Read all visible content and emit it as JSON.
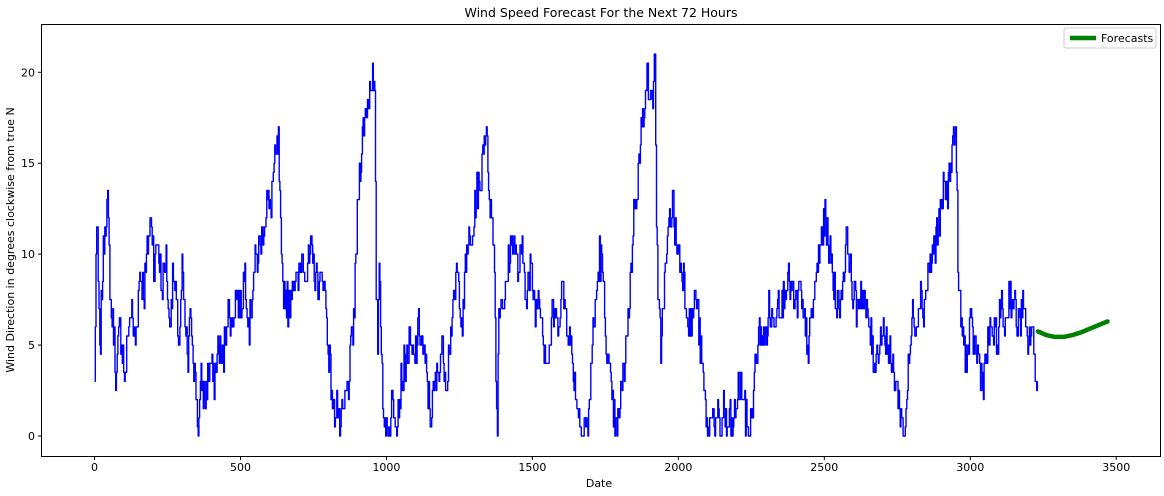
{
  "chart_data": {
    "type": "line",
    "title": "Wind Speed Forecast For the Next 72 Hours",
    "xlabel": "Date",
    "ylabel": "Wind Direction in degrees clockwise from true N",
    "xlim": [
      -180,
      3650
    ],
    "ylim": [
      -1.1,
      22.6
    ],
    "xticks": [
      0,
      500,
      1000,
      1500,
      2000,
      2500,
      3000,
      3500
    ],
    "yticks": [
      0,
      5,
      10,
      15,
      20
    ],
    "grid": false,
    "legend": {
      "position": "top-right",
      "entries": [
        "Forecasts"
      ]
    },
    "series": [
      {
        "color": "#0000ff",
        "anchors": [
          [
            0,
            3
          ],
          [
            5,
            10
          ],
          [
            10,
            11
          ],
          [
            18,
            4
          ],
          [
            25,
            8
          ],
          [
            35,
            12
          ],
          [
            45,
            12.5
          ],
          [
            55,
            7
          ],
          [
            65,
            6
          ],
          [
            75,
            3
          ],
          [
            85,
            6
          ],
          [
            95,
            5
          ],
          [
            105,
            3
          ],
          [
            115,
            6
          ],
          [
            125,
            7
          ],
          [
            140,
            5
          ],
          [
            155,
            9
          ],
          [
            170,
            8
          ],
          [
            185,
            11
          ],
          [
            195,
            12
          ],
          [
            205,
            9
          ],
          [
            215,
            11
          ],
          [
            230,
            8
          ],
          [
            245,
            10
          ],
          [
            255,
            6
          ],
          [
            270,
            9
          ],
          [
            280,
            7
          ],
          [
            290,
            5
          ],
          [
            300,
            9
          ],
          [
            310,
            6
          ],
          [
            320,
            4
          ],
          [
            330,
            7
          ],
          [
            340,
            4
          ],
          [
            350,
            2
          ],
          [
            355,
            0
          ],
          [
            365,
            3
          ],
          [
            380,
            2
          ],
          [
            395,
            4
          ],
          [
            410,
            3
          ],
          [
            425,
            5
          ],
          [
            440,
            4
          ],
          [
            455,
            7
          ],
          [
            470,
            6
          ],
          [
            485,
            8
          ],
          [
            500,
            7
          ],
          [
            515,
            9
          ],
          [
            530,
            6
          ],
          [
            545,
            9
          ],
          [
            560,
            10
          ],
          [
            575,
            11
          ],
          [
            590,
            13
          ],
          [
            600,
            12
          ],
          [
            610,
            14
          ],
          [
            620,
            15
          ],
          [
            630,
            16
          ],
          [
            640,
            9
          ],
          [
            650,
            8
          ],
          [
            665,
            7
          ],
          [
            680,
            9
          ],
          [
            695,
            8
          ],
          [
            710,
            10
          ],
          [
            725,
            9
          ],
          [
            740,
            10
          ],
          [
            755,
            9
          ],
          [
            770,
            8
          ],
          [
            785,
            9
          ],
          [
            800,
            5
          ],
          [
            810,
            3
          ],
          [
            820,
            1
          ],
          [
            830,
            2
          ],
          [
            840,
            0
          ],
          [
            850,
            1
          ],
          [
            860,
            2
          ],
          [
            870,
            3
          ],
          [
            880,
            5
          ],
          [
            890,
            7
          ],
          [
            900,
            12
          ],
          [
            910,
            15
          ],
          [
            920,
            17
          ],
          [
            930,
            18
          ],
          [
            940,
            19
          ],
          [
            950,
            20
          ],
          [
            960,
            18
          ],
          [
            965,
            8
          ],
          [
            970,
            5
          ],
          [
            975,
            10
          ],
          [
            985,
            4
          ],
          [
            990,
            0
          ],
          [
            1000,
            1
          ],
          [
            1010,
            0
          ],
          [
            1020,
            2
          ],
          [
            1035,
            1
          ],
          [
            1050,
            3
          ],
          [
            1065,
            4
          ],
          [
            1080,
            5
          ],
          [
            1095,
            4
          ],
          [
            1110,
            6
          ],
          [
            1125,
            5
          ],
          [
            1140,
            3
          ],
          [
            1150,
            1
          ],
          [
            1160,
            2
          ],
          [
            1170,
            3
          ],
          [
            1180,
            4
          ],
          [
            1190,
            5
          ],
          [
            1205,
            3
          ],
          [
            1215,
            5
          ],
          [
            1230,
            7
          ],
          [
            1240,
            9
          ],
          [
            1250,
            8
          ],
          [
            1260,
            6
          ],
          [
            1270,
            9
          ],
          [
            1280,
            11
          ],
          [
            1290,
            10
          ],
          [
            1300,
            12
          ],
          [
            1310,
            14
          ],
          [
            1320,
            13
          ],
          [
            1330,
            16
          ],
          [
            1340,
            17
          ],
          [
            1350,
            14
          ],
          [
            1360,
            12
          ],
          [
            1370,
            10
          ],
          [
            1375,
            3
          ],
          [
            1380,
            1
          ],
          [
            1385,
            7
          ],
          [
            1395,
            8
          ],
          [
            1405,
            7
          ],
          [
            1420,
            10
          ],
          [
            1435,
            11
          ],
          [
            1450,
            9
          ],
          [
            1465,
            10
          ],
          [
            1480,
            8
          ],
          [
            1495,
            9
          ],
          [
            1510,
            7
          ],
          [
            1525,
            8
          ],
          [
            1540,
            5
          ],
          [
            1555,
            4
          ],
          [
            1570,
            7
          ],
          [
            1585,
            6
          ],
          [
            1600,
            8
          ],
          [
            1615,
            7
          ],
          [
            1630,
            5
          ],
          [
            1645,
            3
          ],
          [
            1660,
            1
          ],
          [
            1670,
            0
          ],
          [
            1680,
            1
          ],
          [
            1690,
            0
          ],
          [
            1700,
            4
          ],
          [
            1710,
            6
          ],
          [
            1720,
            8
          ],
          [
            1730,
            10
          ],
          [
            1740,
            9
          ],
          [
            1750,
            6
          ],
          [
            1760,
            4
          ],
          [
            1770,
            2
          ],
          [
            1780,
            1
          ],
          [
            1790,
            0
          ],
          [
            1800,
            2
          ],
          [
            1810,
            3
          ],
          [
            1820,
            5
          ],
          [
            1830,
            7
          ],
          [
            1840,
            10
          ],
          [
            1850,
            13
          ],
          [
            1860,
            14
          ],
          [
            1870,
            16
          ],
          [
            1880,
            18
          ],
          [
            1890,
            20
          ],
          [
            1900,
            19
          ],
          [
            1910,
            18
          ],
          [
            1920,
            21
          ],
          [
            1925,
            12
          ],
          [
            1930,
            7
          ],
          [
            1940,
            5
          ],
          [
            1950,
            8
          ],
          [
            1960,
            10
          ],
          [
            1970,
            12
          ],
          [
            1980,
            13
          ],
          [
            1990,
            11
          ],
          [
            2000,
            10
          ],
          [
            2015,
            9
          ],
          [
            2030,
            7
          ],
          [
            2045,
            6
          ],
          [
            2060,
            8
          ],
          [
            2075,
            5
          ],
          [
            2085,
            3
          ],
          [
            2095,
            1
          ],
          [
            2105,
            0
          ],
          [
            2115,
            2
          ],
          [
            2125,
            0
          ],
          [
            2135,
            1
          ],
          [
            2145,
            0
          ],
          [
            2155,
            2
          ],
          [
            2165,
            0
          ],
          [
            2175,
            1
          ],
          [
            2185,
            0
          ],
          [
            2200,
            2
          ],
          [
            2215,
            3
          ],
          [
            2230,
            1
          ],
          [
            2245,
            0
          ],
          [
            2255,
            2
          ],
          [
            2265,
            4
          ],
          [
            2280,
            6
          ],
          [
            2295,
            5
          ],
          [
            2310,
            7
          ],
          [
            2325,
            6
          ],
          [
            2340,
            8
          ],
          [
            2355,
            7
          ],
          [
            2370,
            9
          ],
          [
            2385,
            8
          ],
          [
            2400,
            7
          ],
          [
            2415,
            8
          ],
          [
            2430,
            6
          ],
          [
            2445,
            5
          ],
          [
            2460,
            7
          ],
          [
            2475,
            9
          ],
          [
            2490,
            11
          ],
          [
            2505,
            12
          ],
          [
            2520,
            10
          ],
          [
            2535,
            8
          ],
          [
            2550,
            7
          ],
          [
            2565,
            9
          ],
          [
            2580,
            11
          ],
          [
            2595,
            8
          ],
          [
            2610,
            7
          ],
          [
            2625,
            8
          ],
          [
            2640,
            7
          ],
          [
            2655,
            6
          ],
          [
            2670,
            4
          ],
          [
            2685,
            5
          ],
          [
            2700,
            6
          ],
          [
            2715,
            5
          ],
          [
            2730,
            4
          ],
          [
            2745,
            3
          ],
          [
            2755,
            2
          ],
          [
            2765,
            1
          ],
          [
            2775,
            0
          ],
          [
            2785,
            3
          ],
          [
            2795,
            5
          ],
          [
            2805,
            7
          ],
          [
            2815,
            6
          ],
          [
            2825,
            8
          ],
          [
            2840,
            7
          ],
          [
            2855,
            9
          ],
          [
            2870,
            10
          ],
          [
            2885,
            11
          ],
          [
            2900,
            12
          ],
          [
            2910,
            14
          ],
          [
            2920,
            13
          ],
          [
            2930,
            15
          ],
          [
            2940,
            16
          ],
          [
            2950,
            17
          ],
          [
            2960,
            8
          ],
          [
            2970,
            6
          ],
          [
            2980,
            5
          ],
          [
            2990,
            4
          ],
          [
            3000,
            6
          ],
          [
            3015,
            5
          ],
          [
            3030,
            4
          ],
          [
            3045,
            3
          ],
          [
            3060,
            5
          ],
          [
            3075,
            6
          ],
          [
            3090,
            5
          ],
          [
            3105,
            7
          ],
          [
            3120,
            6
          ],
          [
            3135,
            8
          ],
          [
            3150,
            7
          ],
          [
            3165,
            6
          ],
          [
            3180,
            7
          ],
          [
            3195,
            5
          ],
          [
            3210,
            6
          ],
          [
            3220,
            4
          ],
          [
            3230,
            3
          ]
        ]
      },
      {
        "name": "Forecasts",
        "color": "#008000",
        "x": [
          3232,
          3260,
          3290,
          3320,
          3350,
          3380,
          3410,
          3440,
          3470
        ],
        "values": [
          5.75,
          5.55,
          5.45,
          5.45,
          5.55,
          5.7,
          5.9,
          6.1,
          6.3
        ]
      }
    ]
  }
}
